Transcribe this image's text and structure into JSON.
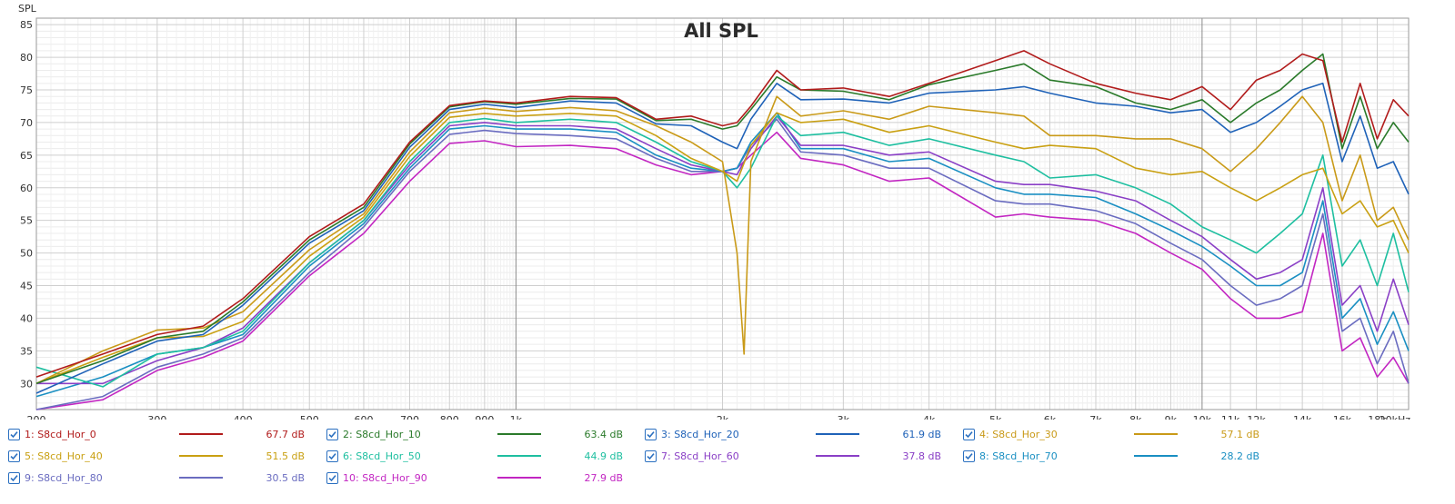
{
  "chart_data": {
    "type": "line",
    "title": "All SPL",
    "ylabel": "SPL",
    "xlabel": "",
    "xscale": "log",
    "xlim": [
      200,
      20000
    ],
    "ylim": [
      26,
      86
    ],
    "yticks": [
      30,
      35,
      40,
      45,
      50,
      55,
      60,
      65,
      70,
      75,
      80,
      85
    ],
    "xticks": [
      {
        "value": 200,
        "label": "200"
      },
      {
        "value": 300,
        "label": "300"
      },
      {
        "value": 400,
        "label": "400"
      },
      {
        "value": 500,
        "label": "500"
      },
      {
        "value": 600,
        "label": "600"
      },
      {
        "value": 700,
        "label": "700"
      },
      {
        "value": 800,
        "label": "800"
      },
      {
        "value": 900,
        "label": "900"
      },
      {
        "value": 1000,
        "label": "1k"
      },
      {
        "value": 2000,
        "label": "2k"
      },
      {
        "value": 3000,
        "label": "3k"
      },
      {
        "value": 4000,
        "label": "4k"
      },
      {
        "value": 5000,
        "label": "5k"
      },
      {
        "value": 6000,
        "label": "6k"
      },
      {
        "value": 7000,
        "label": "7k"
      },
      {
        "value": 8000,
        "label": "8k"
      },
      {
        "value": 9000,
        "label": "9k"
      },
      {
        "value": 10000,
        "label": "10k"
      },
      {
        "value": 11000,
        "label": "11k"
      },
      {
        "value": 12000,
        "label": "12k"
      },
      {
        "value": 14000,
        "label": "14k"
      },
      {
        "value": 16000,
        "label": "16k"
      },
      {
        "value": 18000,
        "label": "18k"
      },
      {
        "value": 20000,
        "label": "20kHz"
      }
    ],
    "grid": true,
    "legend_position": "bottom",
    "series": [
      {
        "name": "1: S8cd_Hor_0",
        "value_label": "67.7 dB",
        "color": "#b11b1b",
        "checked": true,
        "x": [
          200,
          250,
          300,
          350,
          400,
          500,
          600,
          700,
          800,
          900,
          1000,
          1200,
          1400,
          1600,
          1800,
          2000,
          2100,
          2200,
          2400,
          2600,
          3000,
          3500,
          4000,
          5000,
          5500,
          6000,
          7000,
          8000,
          9000,
          10000,
          11000,
          12000,
          13000,
          14000,
          15000,
          16000,
          17000,
          18000,
          19000,
          20000
        ],
        "y": [
          31,
          34.5,
          37.5,
          38.8,
          43,
          52.5,
          57.5,
          67,
          72.6,
          73.3,
          73,
          74,
          73.8,
          70.5,
          71,
          69.5,
          70,
          72.5,
          78,
          75,
          75.3,
          74,
          76,
          79.5,
          81,
          79,
          76,
          74.5,
          73.5,
          75.5,
          72,
          76.5,
          78,
          80.5,
          79.5,
          67,
          76,
          67.5,
          73.5,
          71
        ]
      },
      {
        "name": "2: S8cd_Hor_10",
        "value_label": "63.4 dB",
        "color": "#2a7a2a",
        "checked": true,
        "x": [
          200,
          250,
          300,
          350,
          400,
          500,
          600,
          700,
          800,
          900,
          1000,
          1200,
          1400,
          1600,
          1800,
          2000,
          2100,
          2200,
          2400,
          2600,
          3000,
          3500,
          4000,
          5000,
          5500,
          6000,
          7000,
          8000,
          9000,
          10000,
          11000,
          12000,
          13000,
          14000,
          15000,
          16000,
          17000,
          18000,
          19000,
          20000
        ],
        "y": [
          30,
          33.5,
          37,
          38,
          42.5,
          52,
          57,
          66.7,
          72.4,
          73.2,
          72.8,
          73.7,
          73.6,
          70.3,
          70.5,
          69,
          69.5,
          72,
          77,
          75,
          74.8,
          73.5,
          75.8,
          78,
          79,
          76.5,
          75.5,
          73,
          72,
          73.5,
          70,
          73,
          75,
          78,
          80.5,
          66,
          74,
          66,
          70,
          67
        ]
      },
      {
        "name": "3: S8cd_Hor_20",
        "value_label": "61.9 dB",
        "color": "#1f62b8",
        "checked": true,
        "x": [
          200,
          250,
          300,
          350,
          400,
          500,
          600,
          700,
          800,
          900,
          1000,
          1200,
          1400,
          1600,
          1800,
          2000,
          2100,
          2200,
          2400,
          2600,
          3000,
          3500,
          4000,
          5000,
          5500,
          6000,
          7000,
          8000,
          9000,
          10000,
          11000,
          12000,
          13000,
          14000,
          15000,
          16000,
          17000,
          18000,
          19000,
          20000
        ],
        "y": [
          28.5,
          33,
          36.5,
          37.5,
          42,
          51.5,
          56.5,
          66.2,
          72,
          72.8,
          72.3,
          73.3,
          73,
          69.8,
          69.5,
          67,
          66,
          70.5,
          76,
          73.5,
          73.6,
          73,
          74.5,
          75,
          75.5,
          74.5,
          73,
          72.5,
          71.5,
          72,
          68.5,
          70,
          72.5,
          75,
          76,
          64,
          71,
          63,
          64,
          59
        ]
      },
      {
        "name": "4: S8cd_Hor_30",
        "value_label": "57.1 dB",
        "color": "#c99a18",
        "checked": true,
        "x": [
          200,
          250,
          300,
          350,
          400,
          500,
          600,
          700,
          800,
          900,
          1000,
          1200,
          1400,
          1600,
          1800,
          2000,
          2100,
          2150,
          2200,
          2400,
          2600,
          3000,
          3500,
          4000,
          5000,
          5500,
          6000,
          7000,
          8000,
          9000,
          10000,
          11000,
          12000,
          13000,
          14000,
          15000,
          16000,
          17000,
          18000,
          19000,
          20000
        ],
        "y": [
          30,
          35,
          38.2,
          38.5,
          41,
          50.5,
          56,
          65.5,
          71.5,
          72.2,
          71.7,
          72.3,
          71.8,
          69.5,
          67,
          64,
          50,
          34.5,
          64,
          74,
          71,
          71.8,
          70.5,
          72.5,
          71.5,
          71,
          68,
          68,
          67.5,
          67.5,
          66,
          62.5,
          66,
          70,
          74,
          70,
          58,
          65,
          55,
          57,
          52
        ]
      },
      {
        "name": "5: S8cd_Hor_40",
        "value_label": "51.5 dB",
        "color": "#c9a012",
        "checked": true,
        "x": [
          200,
          250,
          300,
          350,
          400,
          500,
          600,
          700,
          800,
          900,
          1000,
          1200,
          1400,
          1600,
          1800,
          2000,
          2100,
          2200,
          2400,
          2600,
          3000,
          3500,
          4000,
          5000,
          5500,
          6000,
          7000,
          8000,
          9000,
          10000,
          11000,
          12000,
          13000,
          14000,
          15000,
          16000,
          17000,
          18000,
          19000,
          20000
        ],
        "y": [
          30,
          34,
          37,
          37.2,
          39.5,
          49.5,
          55.5,
          64.8,
          70.8,
          71.4,
          71,
          71.4,
          71,
          68,
          64.5,
          62.5,
          61,
          66.5,
          71.5,
          70,
          70.5,
          68.5,
          69.5,
          67,
          66,
          66.5,
          66,
          63,
          62,
          62.5,
          60,
          58,
          60,
          62,
          63,
          56,
          58,
          54,
          55,
          50
        ]
      },
      {
        "name": "6: S8cd_Hor_50",
        "value_label": "44.9 dB",
        "color": "#1ebfa0",
        "checked": true,
        "x": [
          200,
          250,
          300,
          350,
          400,
          500,
          600,
          700,
          800,
          900,
          1000,
          1200,
          1400,
          1600,
          1800,
          2000,
          2100,
          2200,
          2400,
          2600,
          3000,
          3500,
          4000,
          5000,
          5500,
          6000,
          7000,
          8000,
          9000,
          10000,
          11000,
          12000,
          13000,
          14000,
          15000,
          16000,
          17000,
          18000,
          19000,
          20000
        ],
        "y": [
          32.5,
          29.5,
          34.5,
          35.5,
          38,
          48.5,
          55,
          64,
          70,
          70.6,
          70,
          70.5,
          70,
          67,
          64,
          62.5,
          60,
          63,
          71,
          68,
          68.5,
          66.5,
          67.5,
          65,
          64,
          61.5,
          62,
          60,
          57.5,
          54,
          52,
          50,
          53,
          56,
          65,
          48,
          52,
          45,
          53,
          44
        ]
      },
      {
        "name": "7: S8cd_Hor_60",
        "value_label": "37.8 dB",
        "color": "#8a3fc6",
        "checked": true,
        "x": [
          200,
          250,
          300,
          350,
          400,
          500,
          600,
          700,
          800,
          900,
          1000,
          1200,
          1400,
          1600,
          1800,
          2000,
          2100,
          2200,
          2400,
          2600,
          3000,
          3500,
          4000,
          5000,
          5500,
          6000,
          7000,
          8000,
          9000,
          10000,
          11000,
          12000,
          13000,
          14000,
          15000,
          16000,
          17000,
          18000,
          19000,
          20000
        ],
        "y": [
          30,
          30,
          33.5,
          35.5,
          38.5,
          48.5,
          55,
          63.5,
          69.5,
          70,
          69.5,
          69.5,
          69,
          66,
          63.5,
          62.5,
          62,
          66,
          71,
          66.5,
          66.5,
          65,
          65.5,
          61,
          60.5,
          60.5,
          59.5,
          58,
          55,
          52.5,
          49,
          46,
          47,
          49,
          60,
          42,
          45,
          38,
          46,
          39
        ]
      },
      {
        "name": "8: S8cd_Hor_70",
        "value_label": "28.2 dB",
        "color": "#1a8fc2",
        "checked": true,
        "x": [
          200,
          250,
          300,
          350,
          400,
          500,
          600,
          700,
          800,
          900,
          1000,
          1200,
          1400,
          1600,
          1800,
          2000,
          2100,
          2200,
          2400,
          2600,
          3000,
          3500,
          4000,
          5000,
          5500,
          6000,
          7000,
          8000,
          9000,
          10000,
          11000,
          12000,
          13000,
          14000,
          15000,
          16000,
          17000,
          18000,
          19000,
          20000
        ],
        "y": [
          28,
          31,
          34.5,
          35.5,
          37.5,
          48,
          54.5,
          63,
          69,
          69.5,
          69,
          69,
          68.5,
          65,
          63,
          62.5,
          63,
          67,
          71.5,
          66,
          66,
          64,
          64.5,
          60,
          59,
          59,
          58.5,
          56,
          53.5,
          51,
          48,
          45,
          45,
          47,
          58,
          40,
          43,
          36,
          41,
          35
        ]
      },
      {
        "name": "9: S8cd_Hor_80",
        "value_label": "30.5 dB",
        "color": "#6a6cc0",
        "checked": true,
        "x": [
          200,
          250,
          300,
          350,
          400,
          500,
          600,
          700,
          800,
          900,
          1000,
          1200,
          1400,
          1600,
          1800,
          2000,
          2100,
          2200,
          2400,
          2600,
          3000,
          3500,
          4000,
          5000,
          5500,
          6000,
          7000,
          8000,
          9000,
          10000,
          11000,
          12000,
          13000,
          14000,
          15000,
          16000,
          17000,
          18000,
          19000,
          20000
        ],
        "y": [
          25,
          28,
          32.5,
          34.5,
          37,
          47,
          54,
          62.5,
          68.2,
          68.8,
          68.3,
          68,
          67.5,
          64.5,
          62.5,
          62.5,
          63,
          66.5,
          70.5,
          65.5,
          65,
          63,
          63,
          58,
          57.5,
          57.5,
          56.5,
          54.5,
          51.5,
          49,
          45,
          42,
          43,
          45,
          56,
          38,
          40,
          33,
          38,
          30
        ]
      },
      {
        "name": "10: S8cd_Hor_90",
        "value_label": "27.9 dB",
        "color": "#c226c2",
        "checked": true,
        "x": [
          200,
          250,
          300,
          350,
          400,
          500,
          600,
          700,
          800,
          900,
          1000,
          1200,
          1400,
          1600,
          1800,
          2000,
          2100,
          2200,
          2400,
          2600,
          3000,
          3500,
          4000,
          5000,
          5500,
          6000,
          7000,
          8000,
          9000,
          10000,
          11000,
          12000,
          13000,
          14000,
          15000,
          16000,
          17000,
          18000,
          19000,
          20000
        ],
        "y": [
          24,
          27.5,
          32,
          34,
          36.5,
          46.5,
          53,
          61,
          66.8,
          67.2,
          66.3,
          66.5,
          66,
          63.5,
          62,
          62.5,
          63,
          65,
          68.5,
          64.5,
          63.5,
          61,
          61.5,
          55.5,
          56,
          55.5,
          55,
          53,
          50,
          47.5,
          43,
          40,
          40,
          41,
          53,
          35,
          37,
          31,
          34,
          30
        ]
      }
    ]
  }
}
